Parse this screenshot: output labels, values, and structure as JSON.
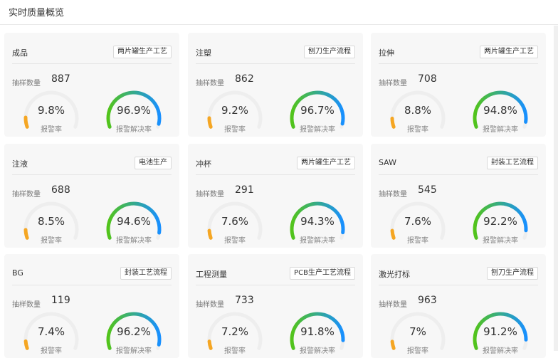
{
  "header": {
    "title": "实时质量概览"
  },
  "colors": {
    "alarm_arc": "#f5a623",
    "resolve_start": "#52c41a",
    "resolve_end": "#1890ff",
    "track": "#eeeeee"
  },
  "labels": {
    "sample": "抽样数量",
    "alarm_rate": "报警率",
    "resolve_rate": "报警解决率"
  },
  "cards": [
    {
      "name": "成品",
      "tag": "两片罐生产工艺",
      "sample": "887",
      "alarm_rate": "9.8%",
      "alarm_value": 9.8,
      "resolve_rate": "96.9%",
      "resolve_value": 96.9
    },
    {
      "name": "注塑",
      "tag": "刨刀生产流程",
      "sample": "862",
      "alarm_rate": "9.2%",
      "alarm_value": 9.2,
      "resolve_rate": "96.7%",
      "resolve_value": 96.7
    },
    {
      "name": "拉伸",
      "tag": "两片罐生产工艺",
      "sample": "708",
      "alarm_rate": "8.8%",
      "alarm_value": 8.8,
      "resolve_rate": "94.8%",
      "resolve_value": 94.8
    },
    {
      "name": "注液",
      "tag": "电池生产",
      "sample": "688",
      "alarm_rate": "8.5%",
      "alarm_value": 8.5,
      "resolve_rate": "94.6%",
      "resolve_value": 94.6
    },
    {
      "name": "冲杯",
      "tag": "两片罐生产工艺",
      "sample": "291",
      "alarm_rate": "7.6%",
      "alarm_value": 7.6,
      "resolve_rate": "94.3%",
      "resolve_value": 94.3
    },
    {
      "name": "SAW",
      "tag": "封装工艺流程",
      "sample": "545",
      "alarm_rate": "7.6%",
      "alarm_value": 7.6,
      "resolve_rate": "92.2%",
      "resolve_value": 92.2
    },
    {
      "name": "BG",
      "tag": "封装工艺流程",
      "sample": "119",
      "alarm_rate": "7.4%",
      "alarm_value": 7.4,
      "resolve_rate": "96.2%",
      "resolve_value": 96.2
    },
    {
      "name": "工程测量",
      "tag": "PCB生产工艺流程",
      "sample": "733",
      "alarm_rate": "7.2%",
      "alarm_value": 7.2,
      "resolve_rate": "91.8%",
      "resolve_value": 91.8
    },
    {
      "name": "激光打标",
      "tag": "刨刀生产流程",
      "sample": "963",
      "alarm_rate": "7%",
      "alarm_value": 7,
      "resolve_rate": "91.2%",
      "resolve_value": 91.2
    }
  ]
}
